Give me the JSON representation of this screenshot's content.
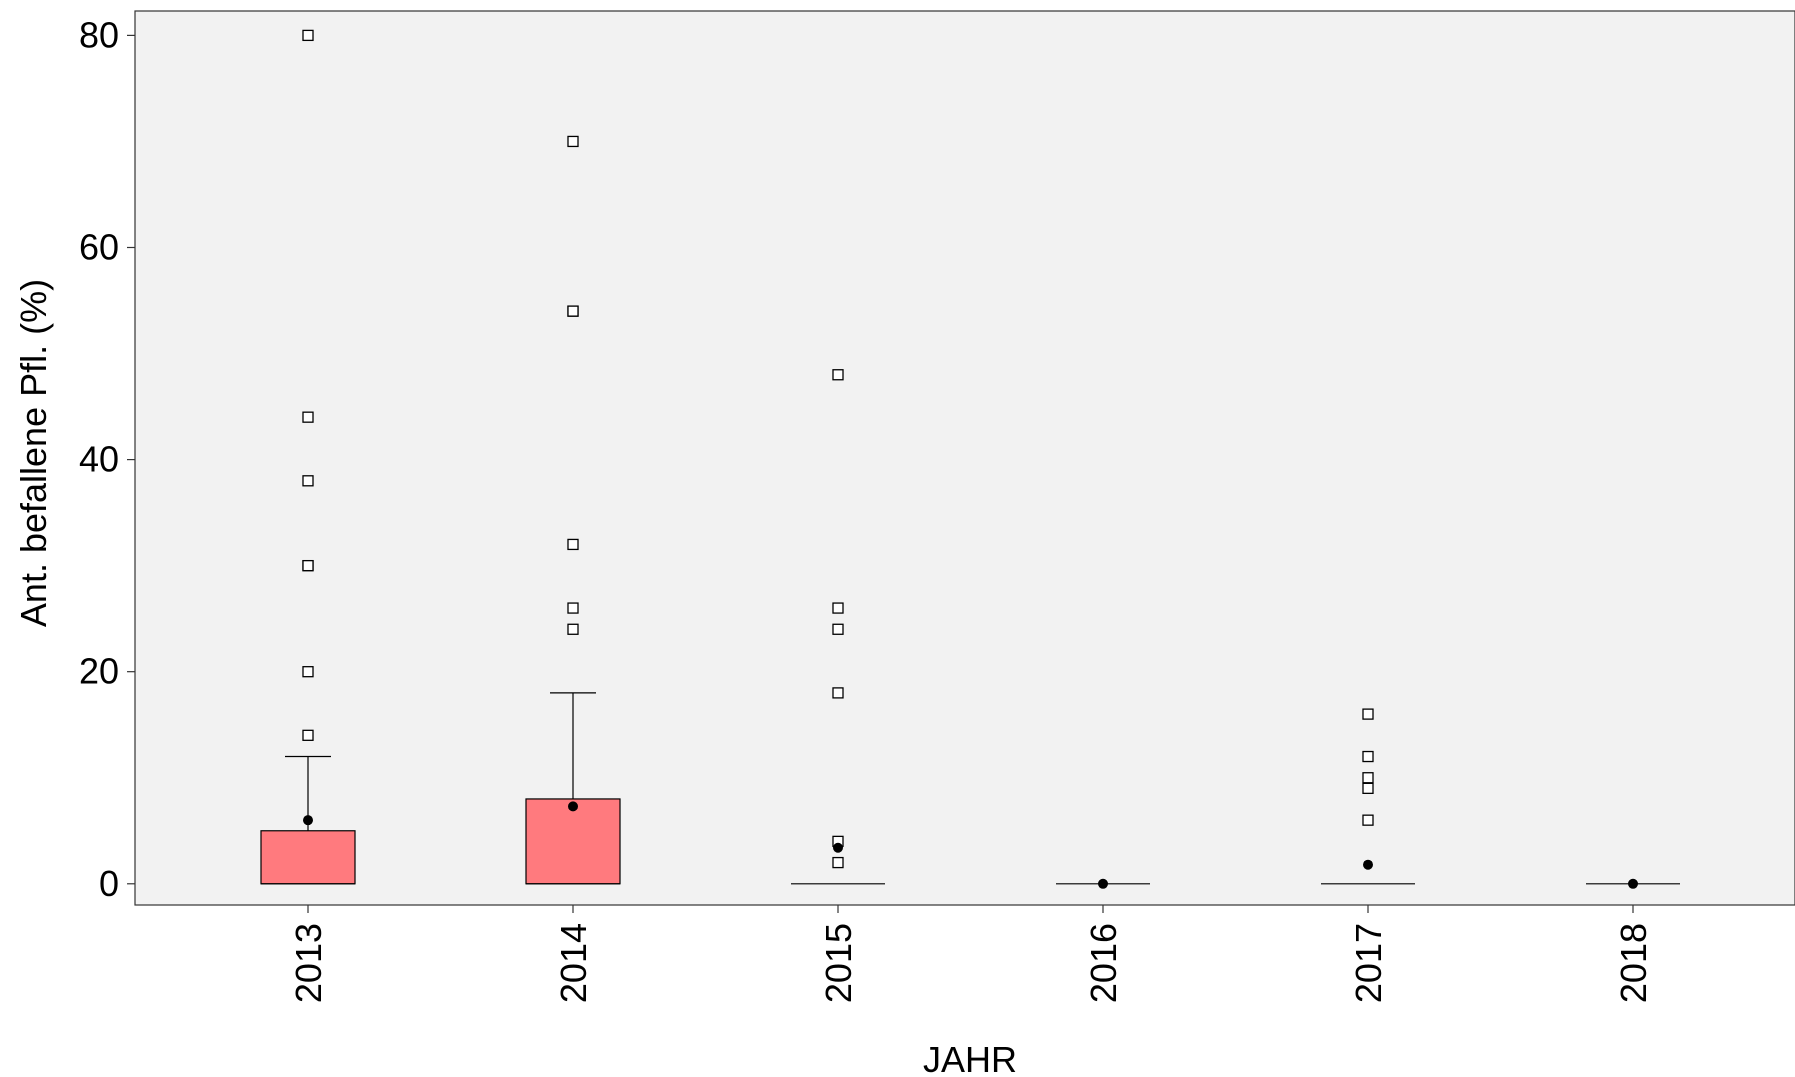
{
  "chart_data": {
    "type": "boxplot",
    "title": "",
    "xlabel": "JAHR",
    "ylabel": "Ant. befallene Pfl. (%)",
    "ylim": [
      -2,
      82.3
    ],
    "yticks": [
      0,
      20,
      40,
      60,
      80
    ],
    "categories": [
      "2013",
      "2014",
      "2015",
      "2016",
      "2017",
      "2018"
    ],
    "box_color": "#ff7a7e",
    "panel_background": "#f2f2f2",
    "grid": false,
    "boxes": [
      {
        "category": "2013",
        "q1": 0,
        "median": 0,
        "q3": 5,
        "whisker_low": 0,
        "whisker_high": 12,
        "mean": 6,
        "outliers": [
          14,
          20,
          30,
          30,
          38,
          44,
          80
        ]
      },
      {
        "category": "2014",
        "q1": 0,
        "median": 0,
        "q3": 8,
        "whisker_low": 0,
        "whisker_high": 18,
        "mean": 7.3,
        "outliers": [
          24,
          26,
          32,
          54,
          54,
          70
        ]
      },
      {
        "category": "2015",
        "q1": 0,
        "median": 0,
        "q3": 0,
        "whisker_low": 0,
        "whisker_high": 0,
        "mean": 3.4,
        "outliers": [
          2,
          4,
          18,
          24,
          26,
          48
        ]
      },
      {
        "category": "2016",
        "q1": 0,
        "median": 0,
        "q3": 0,
        "whisker_low": 0,
        "whisker_high": 0,
        "mean": 0,
        "outliers": []
      },
      {
        "category": "2017",
        "q1": 0,
        "median": 0,
        "q3": 0,
        "whisker_low": 0,
        "whisker_high": 0,
        "mean": 1.8,
        "outliers": [
          6,
          9,
          10,
          12,
          16
        ]
      },
      {
        "category": "2018",
        "q1": 0,
        "median": 0,
        "q3": 0,
        "whisker_low": 0,
        "whisker_high": 0,
        "mean": 0,
        "outliers": []
      }
    ]
  }
}
